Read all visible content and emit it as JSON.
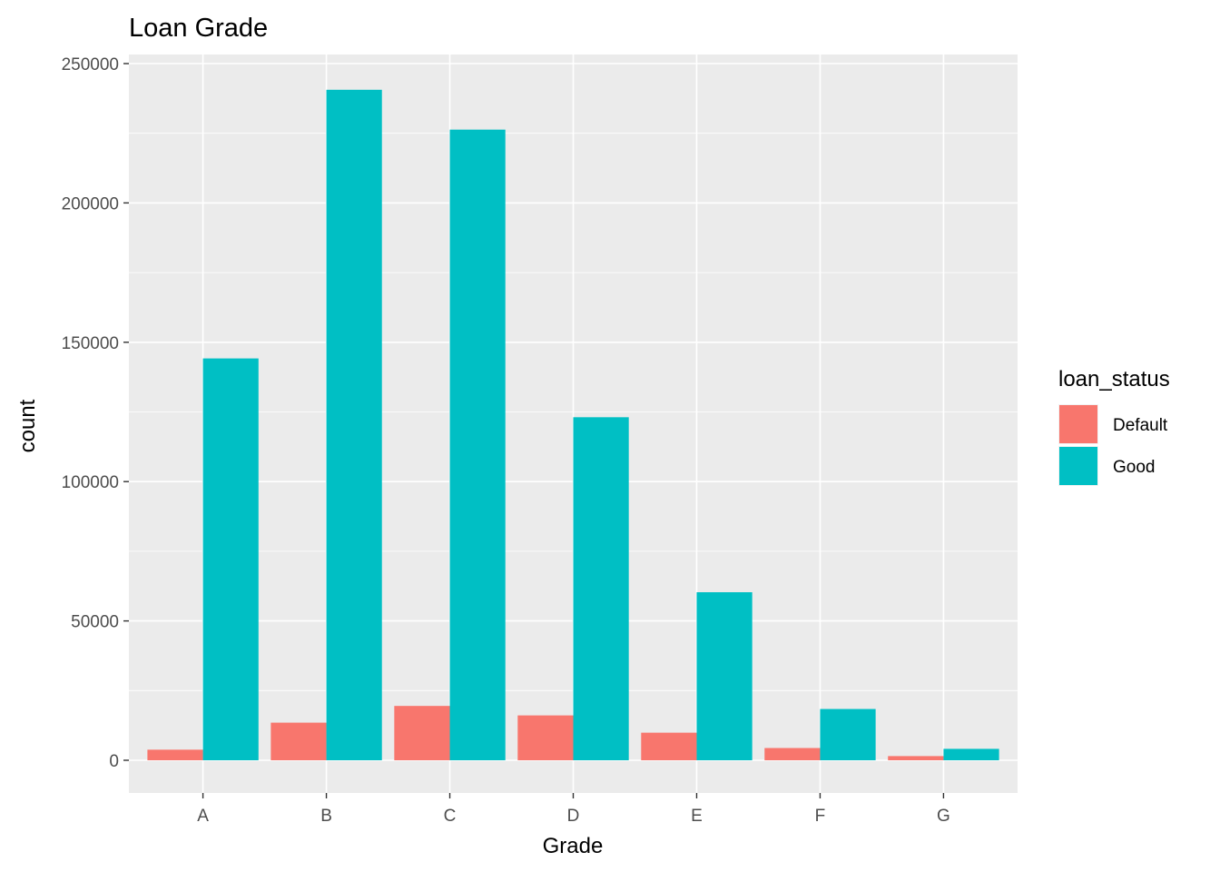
{
  "chart_data": {
    "type": "bar",
    "title": "Loan Grade",
    "xlabel": "Grade",
    "ylabel": "count",
    "categories": [
      "A",
      "B",
      "C",
      "D",
      "E",
      "F",
      "G"
    ],
    "series": [
      {
        "name": "Default",
        "color": "#F8766D",
        "values": [
          3800,
          13500,
          19500,
          16100,
          9900,
          4400,
          1500
        ]
      },
      {
        "name": "Good",
        "color": "#00BFC4",
        "values": [
          144200,
          240600,
          226300,
          123100,
          60300,
          18400,
          4100
        ]
      }
    ],
    "ylim": [
      0,
      250000
    ],
    "yticks": [
      "0",
      "50000",
      "100000",
      "150000",
      "200000",
      "250000"
    ],
    "legend": {
      "title": "loan_status",
      "position": "right"
    },
    "grid": true,
    "panel_background": "#EBEBEB",
    "grid_color": "#FFFFFF"
  }
}
